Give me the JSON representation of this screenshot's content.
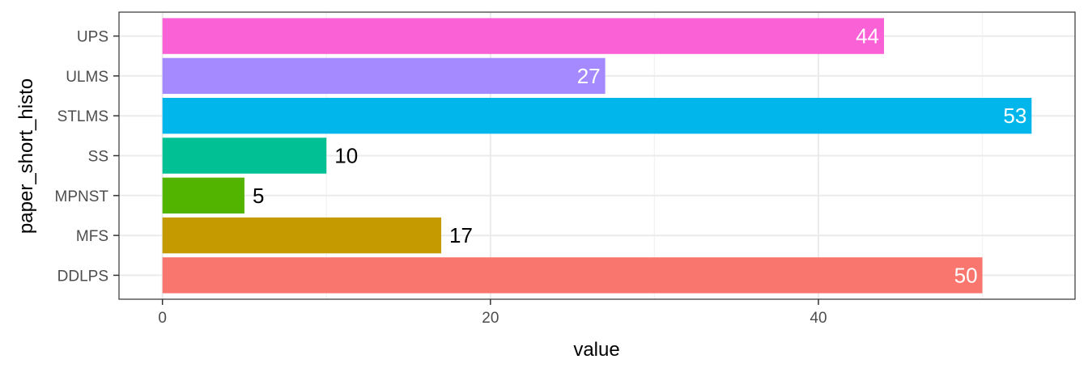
{
  "chart_data": {
    "type": "bar",
    "orientation": "horizontal",
    "categories": [
      "DDLPS",
      "MFS",
      "MPNST",
      "SS",
      "STLMS",
      "ULMS",
      "UPS"
    ],
    "values": [
      50,
      17,
      5,
      10,
      53,
      27,
      44
    ],
    "colors": [
      "#F8766D",
      "#C49A00",
      "#53B400",
      "#00C094",
      "#00B6EB",
      "#A58AFF",
      "#FB61D7"
    ],
    "xlabel": "value",
    "ylabel": "paper_short_histo",
    "xlim": [
      -2.65,
      55.65
    ],
    "xticks": [
      0,
      20,
      40
    ],
    "grid": true,
    "legend": "none"
  }
}
